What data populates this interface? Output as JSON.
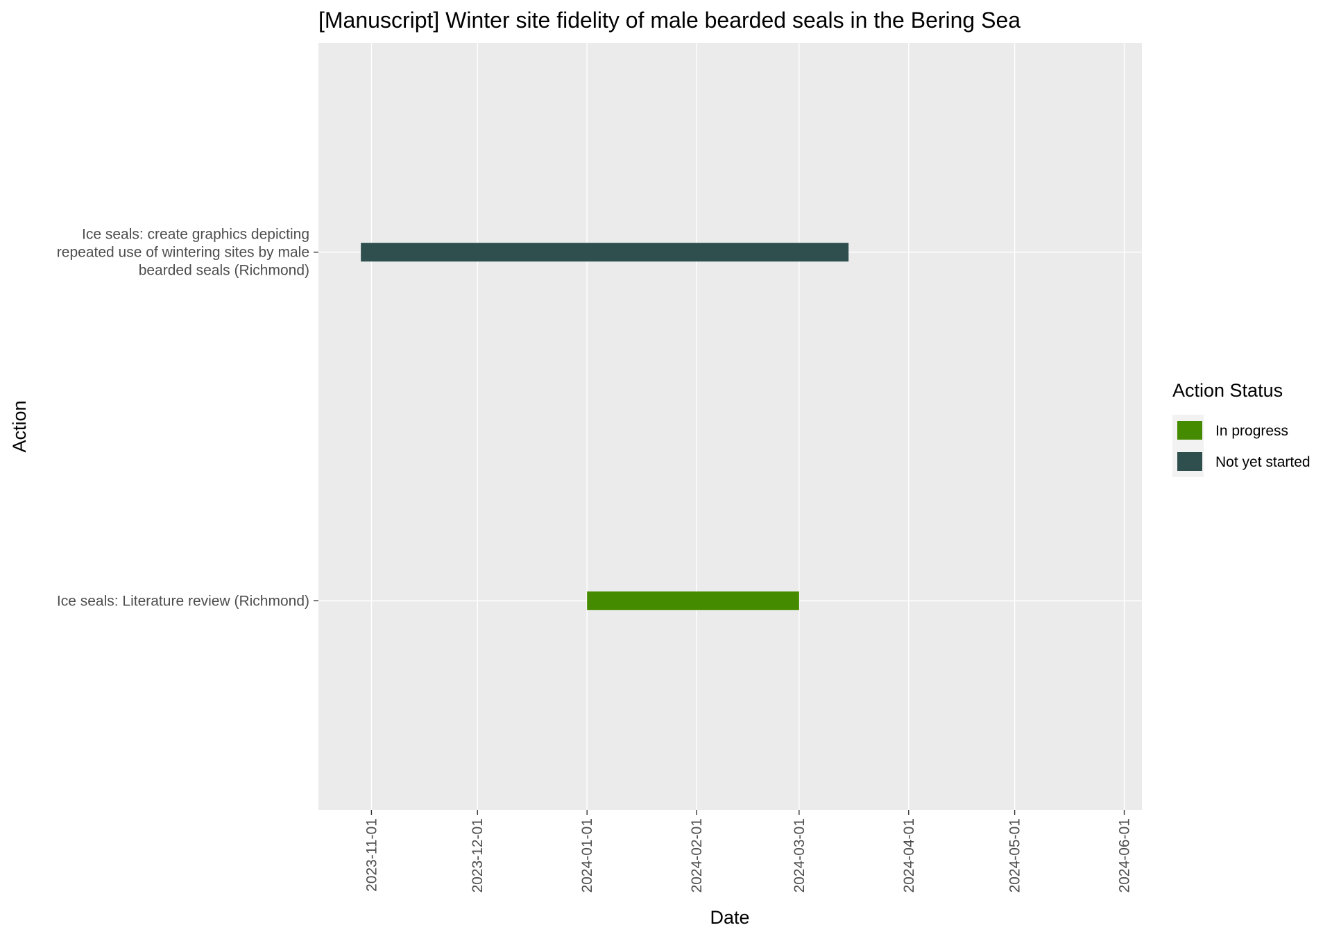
{
  "chart_data": {
    "type": "gantt",
    "title": "[Manuscript] Winter site fidelity of male bearded seals in the Bering Sea",
    "xlabel": "Date",
    "ylabel": "Action",
    "x_ticks": [
      "2023-11-01",
      "2023-12-01",
      "2024-01-01",
      "2024-02-01",
      "2024-03-01",
      "2024-04-01",
      "2024-05-01",
      "2024-06-01"
    ],
    "xlim": [
      "2023-10-17",
      "2024-06-06"
    ],
    "categories": [
      {
        "label_lines": [
          "Ice seals: create graphics depicting",
          "repeated use of wintering sites by male",
          "bearded seals (Richmond)"
        ]
      },
      {
        "label_lines": [
          "Ice seals: Literature review (Richmond)"
        ]
      }
    ],
    "tasks": [
      {
        "category_index": 0,
        "start": "2023-10-29",
        "end": "2024-03-15",
        "status": "Not yet started"
      },
      {
        "category_index": 1,
        "start": "2024-01-01",
        "end": "2024-03-01",
        "status": "In progress"
      }
    ],
    "legend": {
      "title": "Action Status",
      "placement": "right",
      "entries": [
        {
          "label": "In progress",
          "color": "#458B00"
        },
        {
          "label": "Not yet started",
          "color": "#2F4F4F"
        }
      ]
    },
    "grid": true,
    "panel_background": "#EBEBEB",
    "grid_color": "#FFFFFF"
  }
}
